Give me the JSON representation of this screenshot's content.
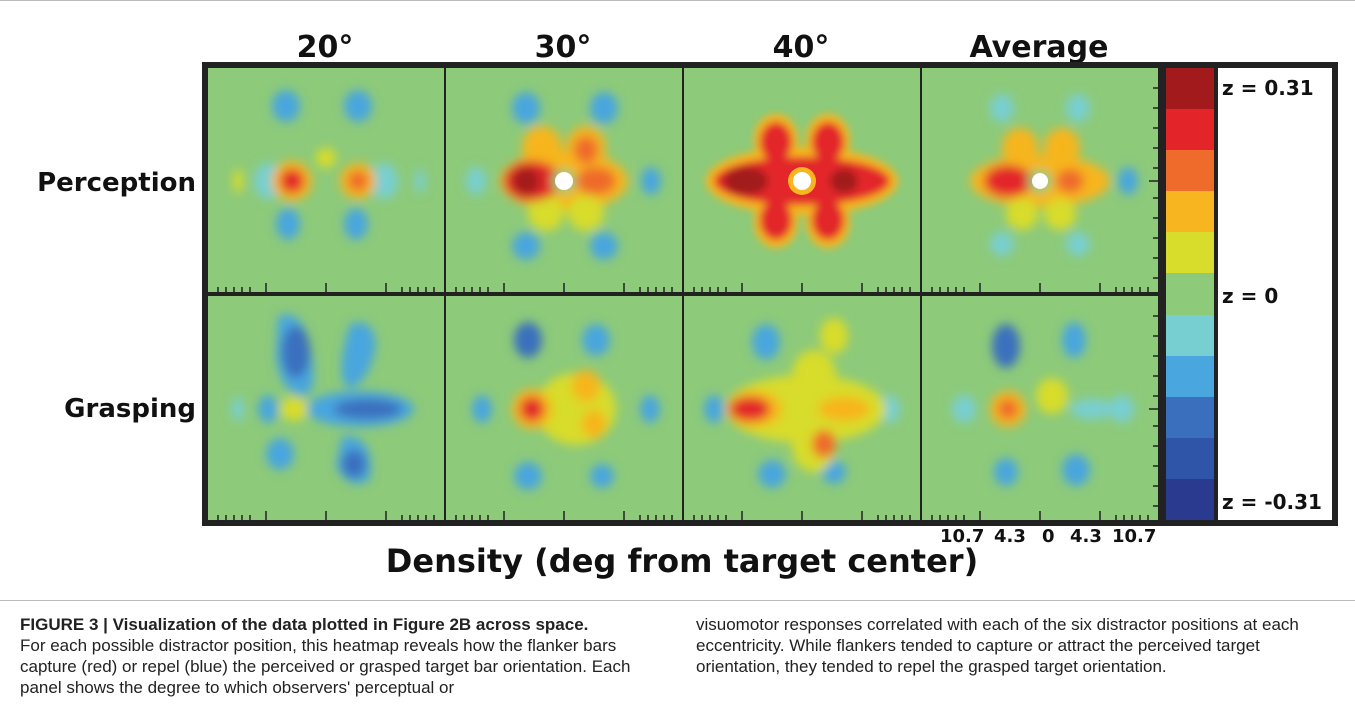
{
  "columns": [
    "20°",
    "30°",
    "40°",
    "Average"
  ],
  "rows": [
    "Perception",
    "Grasping"
  ],
  "colorbar": {
    "colors": [
      "#a31a1c",
      "#e3252a",
      "#ef6b2c",
      "#f7b51f",
      "#d8dc2a",
      "#8dca7a",
      "#78cfd1",
      "#4aa6de",
      "#3a6fbe",
      "#2f55a9",
      "#2a3a8e"
    ],
    "max_label": "z = 0.31",
    "mid_label": "z = 0",
    "min_label": "z = -0.31"
  },
  "x_ticks": [
    "10.7",
    "4.3",
    "0",
    "4.3",
    "10.7"
  ],
  "xlabel": "Density (deg from target center)",
  "caption": {
    "title": "FIGURE 3 | Visualization of the data plotted in Figure 2B across space.",
    "left_text": "For each possible distractor position, this heatmap reveals how the flanker bars capture (red) or repel (blue) the perceived or grasped target bar orientation. Each panel shows the degree to which observers' perceptual or",
    "right_text": "visuomotor responses correlated with each of the six distractor positions at each eccentricity. While flankers tended to capture or attract the perceived target orientation, they tended to repel the grasped target orientation."
  }
}
